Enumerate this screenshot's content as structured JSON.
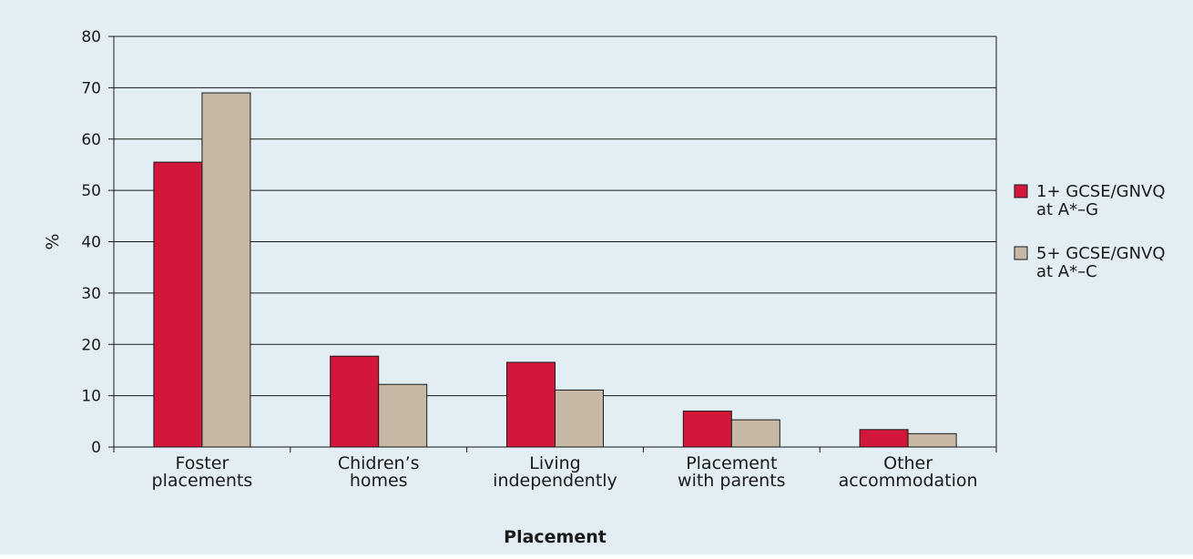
{
  "colors": {
    "background": "#e2eef3",
    "grid": "#1a1a1a",
    "series": [
      "#d3173a",
      "#c7b8a5"
    ]
  },
  "chart_data": {
    "type": "bar",
    "title": "",
    "xlabel": "Placement",
    "ylabel": "%",
    "ylim": [
      0,
      80
    ],
    "yticks": [
      0,
      10,
      20,
      30,
      40,
      50,
      60,
      70,
      80
    ],
    "grid": true,
    "legend_position": "right",
    "categories": [
      [
        "Foster",
        "placements"
      ],
      [
        "Chidren’s",
        "homes"
      ],
      [
        "Living",
        "independently"
      ],
      [
        "Placement",
        "with parents"
      ],
      [
        "Other",
        "accommodation"
      ]
    ],
    "series": [
      {
        "name": [
          "1+ GCSE/GNVQ",
          "at A*–G"
        ],
        "values": [
          55.5,
          17.7,
          16.5,
          7,
          3.4
        ]
      },
      {
        "name": [
          "5+ GCSE/GNVQ",
          "at A*–C"
        ],
        "values": [
          69,
          12.2,
          11.1,
          5.3,
          2.6
        ]
      }
    ]
  }
}
